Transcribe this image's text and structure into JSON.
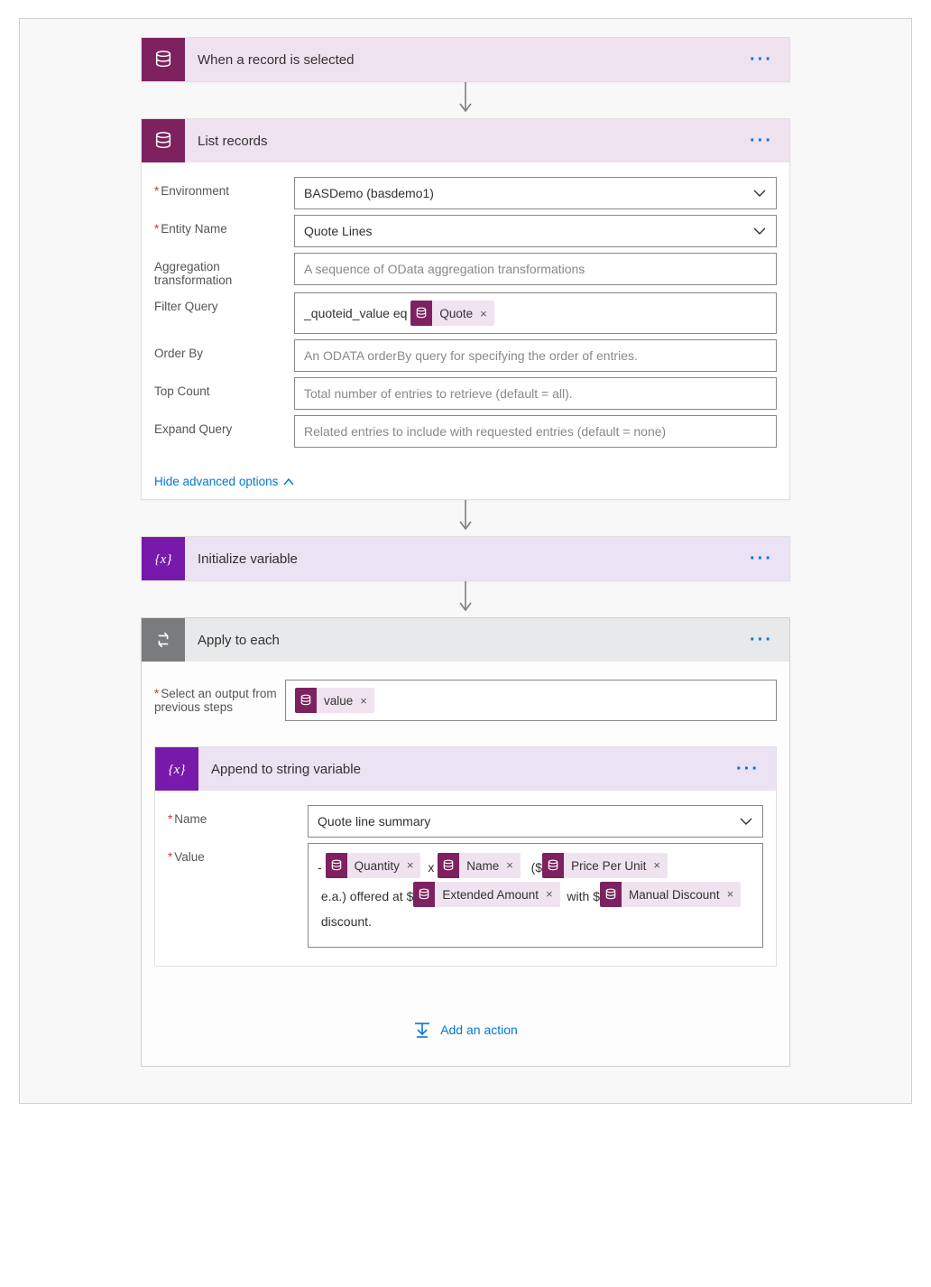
{
  "colors": {
    "db_icon_bg": "#7d225f",
    "var_icon_bg": "#7719aa",
    "loop_icon_bg": "#7a7b7d",
    "header_purple": "#efe2ef",
    "header_lightpurple": "#ebe2f4",
    "header_gray": "#e8e9ea",
    "link": "#0078d4",
    "required": "#d13438",
    "token_bg": "#f0e3f0",
    "border": "#8a8886"
  },
  "steps": {
    "trigger": {
      "title": "When a record is selected"
    },
    "list_records": {
      "title": "List records",
      "fields": {
        "environment": {
          "label": "Environment",
          "required": true,
          "value": "BASDemo (basdemo1)",
          "type": "select"
        },
        "entity_name": {
          "label": "Entity Name",
          "required": true,
          "value": "Quote Lines",
          "type": "select"
        },
        "aggregation": {
          "label": "Aggregation transformation",
          "required": false,
          "placeholder": "A sequence of OData aggregation transformations"
        },
        "filter_query": {
          "label": "Filter Query",
          "required": false,
          "prefix_text": "_quoteid_value eq ",
          "tokens": [
            {
              "label": "Quote"
            }
          ]
        },
        "order_by": {
          "label": "Order By",
          "required": false,
          "placeholder": "An ODATA orderBy query for specifying the order of entries."
        },
        "top_count": {
          "label": "Top Count",
          "required": false,
          "placeholder": "Total number of entries to retrieve (default = all)."
        },
        "expand_query": {
          "label": "Expand Query",
          "required": false,
          "placeholder": "Related entries to include with requested entries (default = none)"
        }
      },
      "advanced_link": "Hide advanced options"
    },
    "init_var": {
      "title": "Initialize variable"
    },
    "apply_each": {
      "title": "Apply to each",
      "select_output": {
        "label": "Select an output from previous steps",
        "required": true,
        "tokens": [
          {
            "label": "value"
          }
        ]
      },
      "inner": {
        "title": "Append to string variable",
        "name_field": {
          "label": "Name",
          "required": true,
          "value": "Quote line summary",
          "type": "select"
        },
        "value_field": {
          "label": "Value",
          "required": true,
          "segments": [
            {
              "type": "text",
              "value": "- "
            },
            {
              "type": "token",
              "label": "Quantity"
            },
            {
              "type": "text",
              "value": " x "
            },
            {
              "type": "token",
              "label": "Name"
            },
            {
              "type": "text",
              "value": "  ($"
            },
            {
              "type": "token",
              "label": "Price Per Unit"
            },
            {
              "type": "text",
              "value": " e.a.) offered at $"
            },
            {
              "type": "token",
              "label": "Extended Amount"
            },
            {
              "type": "text",
              "value": " with $"
            },
            {
              "type": "token",
              "label": "Manual Discount"
            },
            {
              "type": "text",
              "value": " discount."
            }
          ]
        }
      },
      "add_action": "Add an action"
    }
  }
}
